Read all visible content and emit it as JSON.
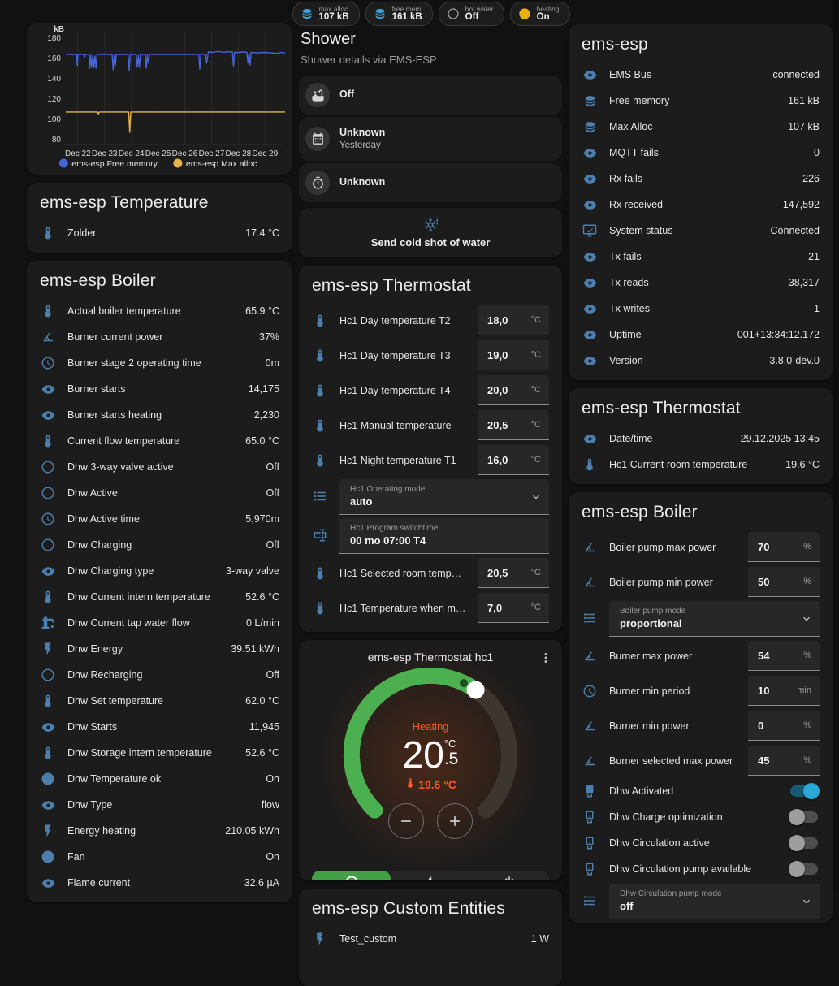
{
  "badges": [
    {
      "icon": "database",
      "icon_color": "#3d9fd6",
      "label": "max alloc",
      "value": "107 kB"
    },
    {
      "icon": "database",
      "icon_color": "#3d9fd6",
      "label": "free mem",
      "value": "161 kB"
    },
    {
      "icon": "circle-outline",
      "icon_color": "#9e9e9e",
      "label": "hot water",
      "value": "Off"
    },
    {
      "icon": "check-circle",
      "icon_color": "#e9b110",
      "label": "heating",
      "value": "On"
    }
  ],
  "chart_data": {
    "type": "line",
    "unit": "kB",
    "ylim": [
      75,
      185
    ],
    "yticks": [
      180,
      160,
      140,
      120,
      100,
      80
    ],
    "xlim": [
      0.55,
      8.75
    ],
    "xticks": [
      {
        "x": 1,
        "label": "Dec 22"
      },
      {
        "x": 2,
        "label": "Dec 23"
      },
      {
        "x": 3,
        "label": "Dec 24"
      },
      {
        "x": 4,
        "label": "Dec 25"
      },
      {
        "x": 5,
        "label": "Dec 26"
      },
      {
        "x": 6,
        "label": "Dec 27"
      },
      {
        "x": 7,
        "label": "Dec 28"
      },
      {
        "x": 8,
        "label": "Dec 29"
      }
    ],
    "legend_position": "bottom",
    "series": [
      {
        "name": "ems-esp Free memory",
        "color": "#4565d8",
        "points": [
          [
            0.55,
            163.5
          ],
          [
            0.95,
            163.5
          ],
          [
            0.98,
            152.5
          ],
          [
            1.01,
            163.5
          ],
          [
            1.22,
            163.5
          ],
          [
            1.25,
            160.5
          ],
          [
            1.28,
            163.5
          ],
          [
            1.42,
            163.5
          ],
          [
            1.45,
            150
          ],
          [
            1.48,
            162.5
          ],
          [
            1.52,
            151
          ],
          [
            1.56,
            163
          ],
          [
            1.6,
            150.5
          ],
          [
            1.64,
            162
          ],
          [
            1.68,
            150
          ],
          [
            1.72,
            163.5
          ],
          [
            2.28,
            163.5
          ],
          [
            2.32,
            148.5
          ],
          [
            2.36,
            162.5
          ],
          [
            2.4,
            152
          ],
          [
            2.44,
            163.5
          ],
          [
            2.88,
            163.5
          ],
          [
            2.92,
            147.5
          ],
          [
            2.96,
            163.5
          ],
          [
            3.18,
            163.5
          ],
          [
            3.22,
            151
          ],
          [
            3.26,
            162.5
          ],
          [
            3.3,
            150.5
          ],
          [
            3.34,
            163.5
          ],
          [
            3.52,
            163.5
          ],
          [
            3.56,
            150
          ],
          [
            3.6,
            163
          ],
          [
            3.64,
            155
          ],
          [
            3.68,
            163.5
          ],
          [
            5.52,
            163.5
          ],
          [
            5.56,
            149
          ],
          [
            5.6,
            163.5
          ],
          [
            5.78,
            163.5
          ],
          [
            5.82,
            155
          ],
          [
            5.88,
            166
          ],
          [
            6.05,
            165.5
          ],
          [
            6.25,
            166.5
          ],
          [
            6.45,
            165.5
          ],
          [
            6.55,
            166
          ],
          [
            6.78,
            166
          ],
          [
            6.82,
            152
          ],
          [
            6.86,
            165.5
          ],
          [
            7.05,
            165.5
          ],
          [
            7.25,
            166
          ],
          [
            7.32,
            165.5
          ],
          [
            7.36,
            155.5
          ],
          [
            7.4,
            165
          ],
          [
            7.44,
            153
          ],
          [
            7.48,
            165.5
          ],
          [
            7.7,
            165
          ],
          [
            7.95,
            165.5
          ],
          [
            8.2,
            165
          ],
          [
            8.45,
            164.5
          ],
          [
            8.6,
            165.5
          ],
          [
            8.75,
            164.8
          ]
        ]
      },
      {
        "name": "ems-esp Max alloc",
        "color": "#e5b348",
        "points": [
          [
            0.55,
            107
          ],
          [
            1.74,
            107
          ],
          [
            1.77,
            105
          ],
          [
            1.8,
            107
          ],
          [
            2.9,
            107
          ],
          [
            2.94,
            87
          ],
          [
            2.98,
            107
          ],
          [
            8.75,
            107
          ]
        ]
      }
    ]
  },
  "left": {
    "temperature": {
      "title": "ems-esp Temperature",
      "rows": [
        {
          "icon": "thermometer",
          "name": "Zolder",
          "value": "17.4 °C"
        }
      ]
    },
    "boiler": {
      "title": "ems-esp Boiler",
      "rows": [
        {
          "icon": "thermometer",
          "name": "Actual boiler temperature",
          "value": "65.9 °C"
        },
        {
          "icon": "angle",
          "name": "Burner current power",
          "value": "37%"
        },
        {
          "icon": "clock",
          "name": "Burner stage 2 operating time",
          "value": "0m"
        },
        {
          "icon": "eye",
          "name": "Burner starts",
          "value": "14,175"
        },
        {
          "icon": "eye",
          "name": "Burner starts heating",
          "value": "2,230"
        },
        {
          "icon": "thermometer",
          "name": "Current flow temperature",
          "value": "65.0 °C"
        },
        {
          "icon": "circle-outline",
          "name": "Dhw 3-way valve active",
          "value": "Off"
        },
        {
          "icon": "circle-outline",
          "name": "Dhw Active",
          "value": "Off"
        },
        {
          "icon": "clock",
          "name": "Dhw Active time",
          "value": "5,970m"
        },
        {
          "icon": "circle-outline",
          "name": "Dhw Charging",
          "value": "Off"
        },
        {
          "icon": "eye",
          "name": "Dhw Charging type",
          "value": "3-way valve"
        },
        {
          "icon": "thermometer",
          "name": "Dhw Current intern temperature",
          "value": "52.6 °C"
        },
        {
          "icon": "water-pump",
          "name": "Dhw Current tap water flow",
          "value": "0 L/min"
        },
        {
          "icon": "flash",
          "name": "Dhw Energy",
          "value": "39.51 kWh"
        },
        {
          "icon": "circle-outline",
          "name": "Dhw Recharging",
          "value": "Off"
        },
        {
          "icon": "thermometer",
          "name": "Dhw Set temperature",
          "value": "62.0 °C"
        },
        {
          "icon": "eye",
          "name": "Dhw Starts",
          "value": "11,945"
        },
        {
          "icon": "thermometer",
          "name": "Dhw Storage intern temperature",
          "value": "52.6 °C"
        },
        {
          "icon": "check-circle",
          "name": "Dhw Temperature ok",
          "value": "On"
        },
        {
          "icon": "eye",
          "name": "Dhw Type",
          "value": "flow"
        },
        {
          "icon": "flash",
          "name": "Energy heating",
          "value": "210.05 kWh"
        },
        {
          "icon": "check-circle",
          "name": "Fan",
          "value": "On"
        },
        {
          "icon": "eye",
          "name": "Flame current",
          "value": "32.6 µA"
        }
      ]
    }
  },
  "middle": {
    "shower": {
      "title": "Shower",
      "subtitle": "Shower details via EMS-ESP",
      "items": [
        {
          "icon": "bathtub",
          "primary": "Off",
          "secondary": ""
        },
        {
          "icon": "calendar",
          "primary": "Unknown",
          "secondary": "Yesterday"
        },
        {
          "icon": "timer",
          "primary": "Unknown",
          "secondary": ""
        }
      ]
    },
    "cold_shot": {
      "icon": "snowflake-alert",
      "label": "Send cold shot of water"
    },
    "thermostat": {
      "title": "ems-esp Thermostat",
      "rows": [
        {
          "type": "input",
          "icon": "thermometer",
          "name": "Hc1 Day temperature T2",
          "value": "18,0",
          "unit": "°C"
        },
        {
          "type": "input",
          "icon": "thermometer",
          "name": "Hc1 Day temperature T3",
          "value": "19,0",
          "unit": "°C"
        },
        {
          "type": "input",
          "icon": "thermometer",
          "name": "Hc1 Day temperature T4",
          "value": "20,0",
          "unit": "°C"
        },
        {
          "type": "input",
          "icon": "thermometer",
          "name": "Hc1 Manual temperature",
          "value": "20,5",
          "unit": "°C"
        },
        {
          "type": "input",
          "icon": "thermometer",
          "name": "Hc1 Night temperature T1",
          "value": "16,0",
          "unit": "°C"
        },
        {
          "type": "select",
          "icon": "list",
          "label": "Hc1 Operating mode",
          "value": "auto"
        },
        {
          "type": "textbox",
          "icon": "form-textbox",
          "label": "Hc1 Program switchtime",
          "value": "00 mo 07:00 T4"
        },
        {
          "type": "input",
          "icon": "thermometer",
          "name": "Hc1 Selected room temper…",
          "value": "20,5",
          "unit": "°C"
        },
        {
          "type": "input",
          "icon": "thermometer",
          "name": "Hc1 Temperature when mo…",
          "value": "7,0",
          "unit": "°C"
        }
      ]
    },
    "hc1": {
      "title": "ems-esp Thermostat hc1",
      "state": "Heating",
      "target_int": "20",
      "target_dec": ".5",
      "unit": "°C",
      "current": "19.6 °C",
      "modes": [
        {
          "icon": "thermostat-auto",
          "active": true
        },
        {
          "icon": "fire",
          "active": false
        },
        {
          "icon": "power",
          "active": false
        }
      ]
    },
    "custom": {
      "title": "ems-esp Custom Entities",
      "rows": [
        {
          "icon": "flash",
          "name": "Test_custom",
          "value": "1 W"
        }
      ]
    }
  },
  "right": {
    "emsesp": {
      "title": "ems-esp",
      "rows": [
        {
          "icon": "eye",
          "name": "EMS Bus",
          "value": "connected"
        },
        {
          "icon": "database",
          "name": "Free memory",
          "value": "161 kB"
        },
        {
          "icon": "database",
          "name": "Max Alloc",
          "value": "107 kB"
        },
        {
          "icon": "eye",
          "name": "MQTT fails",
          "value": "0"
        },
        {
          "icon": "eye",
          "name": "Rx fails",
          "value": "226"
        },
        {
          "icon": "eye",
          "name": "Rx received",
          "value": "147,592"
        },
        {
          "icon": "monitor-check",
          "name": "System status",
          "value": "Connected"
        },
        {
          "icon": "eye",
          "name": "Tx fails",
          "value": "21"
        },
        {
          "icon": "eye",
          "name": "Tx reads",
          "value": "38,317"
        },
        {
          "icon": "eye",
          "name": "Tx writes",
          "value": "1"
        },
        {
          "icon": "eye",
          "name": "Uptime",
          "value": "001+13:34:12.172"
        },
        {
          "icon": "eye",
          "name": "Version",
          "value": "3.8.0-dev.0"
        }
      ]
    },
    "thermostat": {
      "title": "ems-esp Thermostat",
      "rows": [
        {
          "icon": "eye",
          "name": "Date/time",
          "value": "29.12.2025 13:45"
        },
        {
          "icon": "thermometer",
          "name": "Hc1 Current room temperature",
          "value": "19.6 °C"
        }
      ]
    },
    "boiler": {
      "title": "ems-esp Boiler",
      "rows": [
        {
          "type": "input",
          "icon": "angle",
          "name": "Boiler pump max power",
          "value": "70",
          "unit": "%"
        },
        {
          "type": "input",
          "icon": "angle",
          "name": "Boiler pump min power",
          "value": "50",
          "unit": "%"
        },
        {
          "type": "select",
          "icon": "list",
          "label": "Boiler pump mode",
          "value": "proportional"
        },
        {
          "type": "input",
          "icon": "angle",
          "name": "Burner max power",
          "value": "54",
          "unit": "%"
        },
        {
          "type": "input",
          "icon": "clock",
          "name": "Burner min period",
          "value": "10",
          "unit": "min"
        },
        {
          "type": "input",
          "icon": "angle",
          "name": "Burner min power",
          "value": "0",
          "unit": "%"
        },
        {
          "type": "input",
          "icon": "angle",
          "name": "Burner selected max power",
          "value": "45",
          "unit": "%"
        },
        {
          "type": "toggle",
          "icon": "boiler",
          "name": "Dhw Activated",
          "on": true
        },
        {
          "type": "toggle",
          "icon": "boiler-outline",
          "name": "Dhw Charge optimization",
          "on": false
        },
        {
          "type": "toggle",
          "icon": "boiler-outline",
          "name": "Dhw Circulation active",
          "on": false
        },
        {
          "type": "toggle",
          "icon": "boiler-outline",
          "name": "Dhw Circulation pump available",
          "on": false
        },
        {
          "type": "select",
          "icon": "list",
          "label": "Dhw Circulation pump mode",
          "value": "off"
        }
      ]
    }
  }
}
